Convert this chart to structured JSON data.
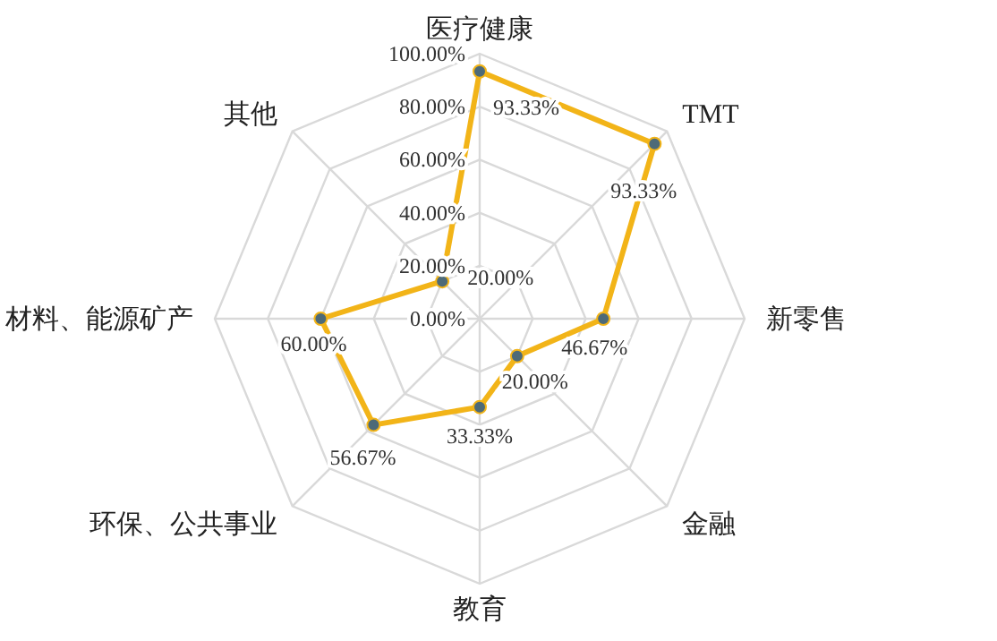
{
  "chart_data": {
    "type": "radar",
    "categories": [
      "医疗健康",
      "TMT",
      "新零售",
      "金融",
      "教育",
      "环保、公共事业",
      "材料、能源矿产",
      "其他"
    ],
    "series": [
      {
        "color": "#f2b418",
        "values": [
          93.33,
          93.33,
          46.67,
          20,
          33.33,
          56.67,
          60,
          20
        ],
        "value_labels": [
          "93.33%",
          "93.33%",
          "46.67%",
          "20.00%",
          "33.33%",
          "56.67%",
          "60.00%",
          "20.00%"
        ]
      }
    ],
    "ylim": [
      0,
      100
    ],
    "yticks": [
      {
        "value": 0,
        "label": "0.00%"
      },
      {
        "value": 20,
        "label": "20.00%"
      },
      {
        "value": 40,
        "label": "40.00%"
      },
      {
        "value": 60,
        "label": "60.00%"
      },
      {
        "value": 80,
        "label": "80.00%"
      },
      {
        "value": 100,
        "label": "100.00%"
      }
    ],
    "grid": true,
    "marker": "circle"
  }
}
